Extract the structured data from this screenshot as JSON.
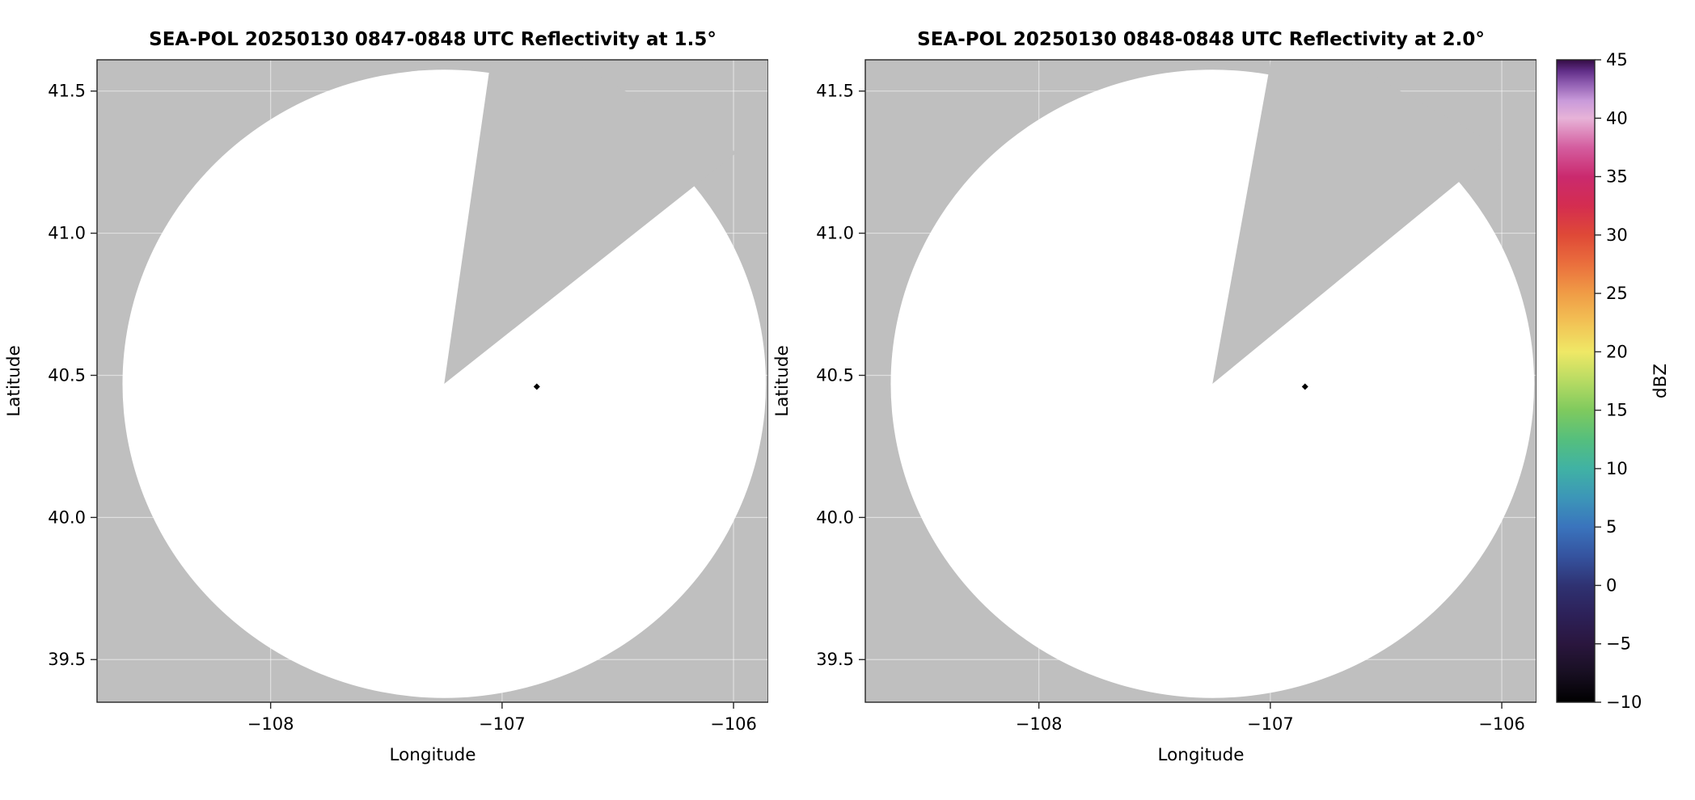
{
  "figure": {
    "colors": {
      "page_bg": "#ffffff",
      "masked_gray": "#bfbfbf",
      "coverage": "#ffffff",
      "grid": "rgba(255,255,255,0.5)",
      "spine": "#262626",
      "text": "#000000"
    }
  },
  "chart_data": [
    {
      "type": "radar_ppi",
      "title": "SEA-POL 20250130 0847-0848 UTC Reflectivity at 1.5°",
      "xlabel": "Longitude",
      "ylabel": "Latitude",
      "xlim": [
        -108.75,
        -105.85
      ],
      "ylim": [
        39.35,
        41.61
      ],
      "grid": true,
      "xticks": [
        {
          "value": -108,
          "label": "−108"
        },
        {
          "value": -107,
          "label": "−107"
        },
        {
          "value": -106,
          "label": "−106"
        }
      ],
      "yticks": [
        {
          "value": 39.5,
          "label": "39.5"
        },
        {
          "value": 40.0,
          "label": "40.0"
        },
        {
          "value": 40.5,
          "label": "40.5"
        },
        {
          "value": 41.0,
          "label": "41.0"
        },
        {
          "value": 41.5,
          "label": "41.5"
        }
      ],
      "radar_center": {
        "lon": -107.25,
        "lat": 40.47
      },
      "coverage_radius_deg": {
        "lon": 1.39,
        "lat": 1.105
      },
      "blocked_sector_az_deg": [
        8,
        51
      ],
      "echo_points": [
        {
          "lon": -106.85,
          "lat": 40.46,
          "color": "#000000"
        }
      ]
    },
    {
      "type": "radar_ppi",
      "title": "SEA-POL 20250130 0848-0848 UTC Reflectivity at 2.0°",
      "xlabel": "Longitude",
      "ylabel": "Latitude",
      "xlim": [
        -108.75,
        -105.85
      ],
      "ylim": [
        39.35,
        41.61
      ],
      "grid": true,
      "xticks": [
        {
          "value": -108,
          "label": "−108"
        },
        {
          "value": -107,
          "label": "−107"
        },
        {
          "value": -106,
          "label": "−106"
        }
      ],
      "yticks": [
        {
          "value": 39.5,
          "label": "39.5"
        },
        {
          "value": 40.0,
          "label": "40.0"
        },
        {
          "value": 40.5,
          "label": "40.5"
        },
        {
          "value": 41.0,
          "label": "41.0"
        },
        {
          "value": 41.5,
          "label": "41.5"
        }
      ],
      "radar_center": {
        "lon": -107.25,
        "lat": 40.47
      },
      "coverage_radius_deg": {
        "lon": 1.39,
        "lat": 1.105
      },
      "blocked_sector_az_deg": [
        10,
        50
      ],
      "echo_points": [
        {
          "lon": -106.85,
          "lat": 40.46,
          "color": "#000000"
        }
      ]
    }
  ],
  "colorbar": {
    "label": "dBZ",
    "min": -10,
    "max": 45,
    "ticks": [
      {
        "value": -10,
        "label": "−10"
      },
      {
        "value": -5,
        "label": "−5"
      },
      {
        "value": 0,
        "label": "0"
      },
      {
        "value": 5,
        "label": "5"
      },
      {
        "value": 10,
        "label": "10"
      },
      {
        "value": 15,
        "label": "15"
      },
      {
        "value": 20,
        "label": "20"
      },
      {
        "value": 25,
        "label": "25"
      },
      {
        "value": 30,
        "label": "30"
      },
      {
        "value": 35,
        "label": "35"
      },
      {
        "value": 40,
        "label": "40"
      },
      {
        "value": 45,
        "label": "45"
      }
    ],
    "gradient_stops": [
      {
        "value": -10,
        "color": "#000000"
      },
      {
        "value": -7.5,
        "color": "#180f22"
      },
      {
        "value": -5,
        "color": "#2a163e"
      },
      {
        "value": -2.5,
        "color": "#2d2159"
      },
      {
        "value": 0,
        "color": "#2f3272"
      },
      {
        "value": 2.5,
        "color": "#35539f"
      },
      {
        "value": 5,
        "color": "#3a74bd"
      },
      {
        "value": 7.5,
        "color": "#3c96b8"
      },
      {
        "value": 10,
        "color": "#40b2a4"
      },
      {
        "value": 12.5,
        "color": "#55bf7d"
      },
      {
        "value": 15,
        "color": "#7fca5e"
      },
      {
        "value": 17.5,
        "color": "#b7db63"
      },
      {
        "value": 20,
        "color": "#efe866"
      },
      {
        "value": 22.5,
        "color": "#f2c255"
      },
      {
        "value": 25,
        "color": "#f09c46"
      },
      {
        "value": 27.5,
        "color": "#ea6f3d"
      },
      {
        "value": 30,
        "color": "#df4937"
      },
      {
        "value": 32.5,
        "color": "#d42d50"
      },
      {
        "value": 35,
        "color": "#ca2a6e"
      },
      {
        "value": 37.5,
        "color": "#d45d9f"
      },
      {
        "value": 40,
        "color": "#e7b3d8"
      },
      {
        "value": 41.5,
        "color": "#c99ada"
      },
      {
        "value": 43,
        "color": "#8e5cb0"
      },
      {
        "value": 44,
        "color": "#63308a"
      },
      {
        "value": 45,
        "color": "#340c44"
      }
    ]
  }
}
